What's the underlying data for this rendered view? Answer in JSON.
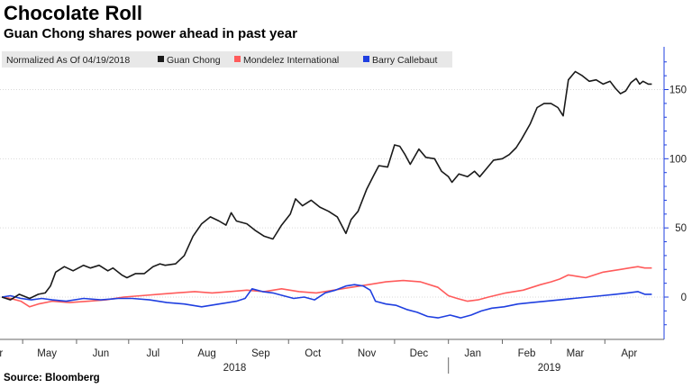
{
  "title": "Chocolate Roll",
  "subtitle": "Guan Chong shares power ahead in past year",
  "source": "Source: Bloomberg",
  "colors": {
    "guan_chong": "#1a1a1a",
    "mondelez": "#ff5b5b",
    "barry": "#1f3fe0",
    "axis": "#1f3fe0",
    "grid": "#d9d9d9",
    "legend_bg": "#e8e8e8"
  },
  "chart_data": {
    "type": "line",
    "title": "Chocolate Roll",
    "subtitle": "Guan Chong shares power ahead in past year",
    "normalization_note": "Normalized As Of 04/19/2018",
    "x_range": [
      "2018-04-19",
      "2019-04-19"
    ],
    "ylim": [
      -30,
      180
    ],
    "yticks": [
      0,
      50,
      100,
      150
    ],
    "y_axis_side": "right",
    "grid": true,
    "legend_position": "top",
    "xticks": [
      {
        "label": "Apr",
        "date": "2018-04-15"
      },
      {
        "label": "May",
        "date": "2018-05-15"
      },
      {
        "label": "Jun",
        "date": "2018-06-15"
      },
      {
        "label": "Jul",
        "date": "2018-07-15"
      },
      {
        "label": "Aug",
        "date": "2018-08-15"
      },
      {
        "label": "Sep",
        "date": "2018-09-15"
      },
      {
        "label": "Oct",
        "date": "2018-10-15"
      },
      {
        "label": "Nov",
        "date": "2018-11-15"
      },
      {
        "label": "Dec",
        "date": "2018-12-15"
      },
      {
        "label": "Jan",
        "date": "2019-01-15"
      },
      {
        "label": "Feb",
        "date": "2019-02-15"
      },
      {
        "label": "Mar",
        "date": "2019-03-15"
      },
      {
        "label": "Apr",
        "date": "2019-04-15"
      }
    ],
    "year_labels": [
      {
        "label": "2018",
        "date": "2018-08-31"
      },
      {
        "label": "2019",
        "date": "2019-02-28"
      }
    ],
    "series": [
      {
        "name": "Guan Chong",
        "color": "#1a1a1a",
        "points": [
          [
            "2018-04-19",
            0
          ],
          [
            "2018-04-24",
            -2
          ],
          [
            "2018-04-29",
            2
          ],
          [
            "2018-05-05",
            -1
          ],
          [
            "2018-05-10",
            2
          ],
          [
            "2018-05-14",
            3
          ],
          [
            "2018-05-17",
            8
          ],
          [
            "2018-05-20",
            18
          ],
          [
            "2018-05-25",
            22
          ],
          [
            "2018-05-30",
            19
          ],
          [
            "2018-06-05",
            23
          ],
          [
            "2018-06-09",
            21
          ],
          [
            "2018-06-14",
            23
          ],
          [
            "2018-06-19",
            19
          ],
          [
            "2018-06-22",
            21
          ],
          [
            "2018-06-27",
            16
          ],
          [
            "2018-06-30",
            14
          ],
          [
            "2018-07-05",
            17
          ],
          [
            "2018-07-10",
            17
          ],
          [
            "2018-07-15",
            22
          ],
          [
            "2018-07-19",
            24
          ],
          [
            "2018-07-22",
            23
          ],
          [
            "2018-07-28",
            24
          ],
          [
            "2018-08-02",
            30
          ],
          [
            "2018-08-07",
            44
          ],
          [
            "2018-08-12",
            53
          ],
          [
            "2018-08-17",
            58
          ],
          [
            "2018-08-22",
            55
          ],
          [
            "2018-08-26",
            52
          ],
          [
            "2018-08-29",
            61
          ],
          [
            "2018-09-01",
            55
          ],
          [
            "2018-09-07",
            53
          ],
          [
            "2018-09-12",
            48
          ],
          [
            "2018-09-17",
            44
          ],
          [
            "2018-09-22",
            42
          ],
          [
            "2018-09-27",
            52
          ],
          [
            "2018-10-02",
            60
          ],
          [
            "2018-10-05",
            71
          ],
          [
            "2018-10-09",
            66
          ],
          [
            "2018-10-14",
            70
          ],
          [
            "2018-10-19",
            65
          ],
          [
            "2018-10-24",
            62
          ],
          [
            "2018-10-29",
            58
          ],
          [
            "2018-11-03",
            46
          ],
          [
            "2018-11-06",
            56
          ],
          [
            "2018-11-10",
            62
          ],
          [
            "2018-11-15",
            78
          ],
          [
            "2018-11-19",
            88
          ],
          [
            "2018-11-22",
            95
          ],
          [
            "2018-11-27",
            94
          ],
          [
            "2018-12-01",
            110
          ],
          [
            "2018-12-04",
            109
          ],
          [
            "2018-12-07",
            103
          ],
          [
            "2018-12-10",
            96
          ],
          [
            "2018-12-15",
            107
          ],
          [
            "2018-12-19",
            101
          ],
          [
            "2018-12-24",
            100
          ],
          [
            "2018-12-28",
            91
          ],
          [
            "2019-01-01",
            87
          ],
          [
            "2019-01-03",
            83
          ],
          [
            "2019-01-07",
            89
          ],
          [
            "2019-01-12",
            87
          ],
          [
            "2019-01-16",
            91
          ],
          [
            "2019-01-19",
            87
          ],
          [
            "2019-01-23",
            93
          ],
          [
            "2019-01-27",
            99
          ],
          [
            "2019-02-01",
            100
          ],
          [
            "2019-02-05",
            103
          ],
          [
            "2019-02-09",
            108
          ],
          [
            "2019-02-12",
            114
          ],
          [
            "2019-02-17",
            125
          ],
          [
            "2019-02-21",
            137
          ],
          [
            "2019-02-25",
            140
          ],
          [
            "2019-03-01",
            140
          ],
          [
            "2019-03-05",
            137
          ],
          [
            "2019-03-08",
            131
          ],
          [
            "2019-03-11",
            157
          ],
          [
            "2019-03-15",
            163
          ],
          [
            "2019-03-19",
            160
          ],
          [
            "2019-03-23",
            156
          ],
          [
            "2019-03-27",
            157
          ],
          [
            "2019-03-31",
            154
          ],
          [
            "2019-04-04",
            156
          ],
          [
            "2019-04-07",
            151
          ],
          [
            "2019-04-10",
            147
          ],
          [
            "2019-04-13",
            149
          ],
          [
            "2019-04-16",
            155
          ],
          [
            "2019-04-19",
            158
          ],
          [
            "2019-04-21",
            154
          ],
          [
            "2019-04-23",
            156
          ],
          [
            "2019-04-26",
            154
          ],
          [
            "2019-04-28",
            154
          ]
        ]
      },
      {
        "name": "Mondelez International",
        "color": "#ff5b5b",
        "points": [
          [
            "2018-04-19",
            0
          ],
          [
            "2018-04-24",
            -1
          ],
          [
            "2018-04-30",
            -3
          ],
          [
            "2018-05-05",
            -7
          ],
          [
            "2018-05-10",
            -5
          ],
          [
            "2018-05-18",
            -3
          ],
          [
            "2018-05-28",
            -4
          ],
          [
            "2018-06-08",
            -3
          ],
          [
            "2018-06-18",
            -2
          ],
          [
            "2018-06-28",
            0
          ],
          [
            "2018-07-08",
            1
          ],
          [
            "2018-07-18",
            2
          ],
          [
            "2018-07-28",
            3
          ],
          [
            "2018-08-08",
            4
          ],
          [
            "2018-08-18",
            3
          ],
          [
            "2018-08-28",
            4
          ],
          [
            "2018-09-07",
            5
          ],
          [
            "2018-09-17",
            4
          ],
          [
            "2018-09-27",
            6
          ],
          [
            "2018-10-07",
            4
          ],
          [
            "2018-10-17",
            3
          ],
          [
            "2018-10-27",
            5
          ],
          [
            "2018-11-06",
            7
          ],
          [
            "2018-11-16",
            9
          ],
          [
            "2018-11-26",
            11
          ],
          [
            "2018-12-06",
            12
          ],
          [
            "2018-12-16",
            11
          ],
          [
            "2018-12-26",
            7
          ],
          [
            "2019-01-01",
            1
          ],
          [
            "2019-01-06",
            -1
          ],
          [
            "2019-01-12",
            -3
          ],
          [
            "2019-01-18",
            -2
          ],
          [
            "2019-01-24",
            0
          ],
          [
            "2019-02-03",
            3
          ],
          [
            "2019-02-13",
            5
          ],
          [
            "2019-02-23",
            9
          ],
          [
            "2019-03-01",
            11
          ],
          [
            "2019-03-06",
            13
          ],
          [
            "2019-03-11",
            16
          ],
          [
            "2019-03-16",
            15
          ],
          [
            "2019-03-21",
            14
          ],
          [
            "2019-03-26",
            16
          ],
          [
            "2019-03-31",
            18
          ],
          [
            "2019-04-05",
            19
          ],
          [
            "2019-04-10",
            20
          ],
          [
            "2019-04-15",
            21
          ],
          [
            "2019-04-20",
            22
          ],
          [
            "2019-04-24",
            21
          ],
          [
            "2019-04-28",
            21
          ]
        ]
      },
      {
        "name": "Barry Callebaut",
        "color": "#1f3fe0",
        "points": [
          [
            "2018-04-19",
            0
          ],
          [
            "2018-04-24",
            1
          ],
          [
            "2018-04-30",
            -1
          ],
          [
            "2018-05-06",
            -2
          ],
          [
            "2018-05-12",
            -1
          ],
          [
            "2018-05-18",
            -2
          ],
          [
            "2018-05-26",
            -3
          ],
          [
            "2018-06-05",
            -1
          ],
          [
            "2018-06-15",
            -2
          ],
          [
            "2018-06-25",
            -1
          ],
          [
            "2018-07-03",
            -1
          ],
          [
            "2018-07-13",
            -2
          ],
          [
            "2018-07-23",
            -4
          ],
          [
            "2018-08-02",
            -5
          ],
          [
            "2018-08-12",
            -7
          ],
          [
            "2018-08-22",
            -5
          ],
          [
            "2018-09-01",
            -3
          ],
          [
            "2018-09-06",
            -1
          ],
          [
            "2018-09-10",
            6
          ],
          [
            "2018-09-16",
            4
          ],
          [
            "2018-09-22",
            3
          ],
          [
            "2018-09-28",
            1
          ],
          [
            "2018-10-04",
            -1
          ],
          [
            "2018-10-10",
            0
          ],
          [
            "2018-10-16",
            -2
          ],
          [
            "2018-10-22",
            3
          ],
          [
            "2018-10-28",
            5
          ],
          [
            "2018-11-03",
            8
          ],
          [
            "2018-11-08",
            9
          ],
          [
            "2018-11-13",
            8
          ],
          [
            "2018-11-17",
            5
          ],
          [
            "2018-11-20",
            -3
          ],
          [
            "2018-11-26",
            -5
          ],
          [
            "2018-12-02",
            -6
          ],
          [
            "2018-12-08",
            -9
          ],
          [
            "2018-12-14",
            -11
          ],
          [
            "2018-12-20",
            -14
          ],
          [
            "2018-12-26",
            -15
          ],
          [
            "2019-01-02",
            -13
          ],
          [
            "2019-01-08",
            -15
          ],
          [
            "2019-01-14",
            -13
          ],
          [
            "2019-01-20",
            -10
          ],
          [
            "2019-01-26",
            -8
          ],
          [
            "2019-02-02",
            -7
          ],
          [
            "2019-02-10",
            -5
          ],
          [
            "2019-02-18",
            -4
          ],
          [
            "2019-02-26",
            -3
          ],
          [
            "2019-03-06",
            -2
          ],
          [
            "2019-03-14",
            -1
          ],
          [
            "2019-03-22",
            0
          ],
          [
            "2019-03-30",
            1
          ],
          [
            "2019-04-07",
            2
          ],
          [
            "2019-04-14",
            3
          ],
          [
            "2019-04-20",
            4
          ],
          [
            "2019-04-24",
            2
          ],
          [
            "2019-04-28",
            2
          ]
        ]
      }
    ]
  }
}
